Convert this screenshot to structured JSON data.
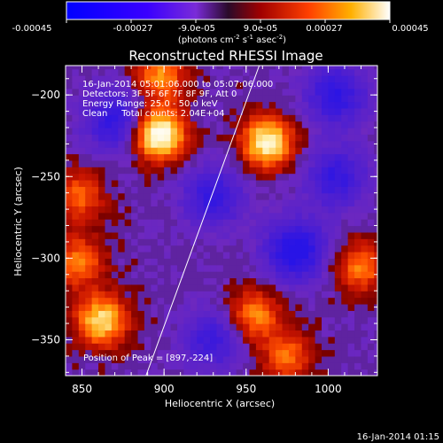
{
  "colorbar": {
    "ticks": [
      "-0.00045",
      "-0.00027",
      "-9.0e-05",
      "9.0e-05",
      "0.00027",
      "0.00045"
    ],
    "tick_values": [
      -0.00045,
      -0.00027,
      -9e-05,
      9e-05,
      0.00027,
      0.00045
    ],
    "range": [
      -0.00045,
      0.00045
    ],
    "label_main": "(photons cm",
    "label_sup1": "-2",
    "label_mid1": " s",
    "label_sup2": "-1",
    "label_mid2": " asec",
    "label_sup3": "-2",
    "label_end": ")"
  },
  "plot": {
    "title": "Reconstructed RHESSI Image",
    "info_lines": [
      "16-Jan-2014 05:01:06.000 to 05:07:06.000",
      "Detectors: 3F 5F 6F 7F 8F 9F, Att 0",
      "Energy Range: 25.0 - 50.0 keV",
      "Clean     Total counts: 2.04E+04"
    ],
    "peak_label": "Position of Peak = [897,-224]",
    "timestamp": "16-Jan-2014 01:15"
  },
  "chart_data": {
    "type": "heatmap",
    "title": "Reconstructed RHESSI Image",
    "xlabel": "Heliocentric X (arcsec)",
    "ylabel": "Heliocentric Y (arcsec)",
    "xlim": [
      840,
      1030
    ],
    "ylim": [
      -372,
      -182
    ],
    "x_ticks": [
      850,
      900,
      950,
      1000
    ],
    "y_ticks": [
      -350,
      -300,
      -250,
      -200
    ],
    "peak": [
      897,
      -224
    ],
    "limb_line": [
      [
        889,
        -372
      ],
      [
        958,
        -182
      ]
    ],
    "bright_sources": [
      {
        "x": 897,
        "y": -224,
        "intensity": 1.0
      },
      {
        "x": 963,
        "y": -229,
        "intensity": 0.85
      },
      {
        "x": 862,
        "y": -338,
        "intensity": 0.75
      },
      {
        "x": 848,
        "y": -302,
        "intensity": 0.5
      },
      {
        "x": 848,
        "y": -262,
        "intensity": 0.45
      },
      {
        "x": 898,
        "y": -188,
        "intensity": 0.55
      },
      {
        "x": 955,
        "y": -335,
        "intensity": 0.55
      },
      {
        "x": 1020,
        "y": -305,
        "intensity": 0.5
      },
      {
        "x": 975,
        "y": -360,
        "intensity": 0.45
      }
    ],
    "dim_sources": [
      {
        "x": 980,
        "y": -295,
        "intensity": 0.7
      },
      {
        "x": 870,
        "y": -215,
        "intensity": 0.55
      },
      {
        "x": 930,
        "y": -262,
        "intensity": 0.5
      },
      {
        "x": 1005,
        "y": -200,
        "intensity": 0.55
      },
      {
        "x": 930,
        "y": -350,
        "intensity": 0.45
      },
      {
        "x": 1005,
        "y": -250,
        "intensity": 0.5
      }
    ]
  }
}
